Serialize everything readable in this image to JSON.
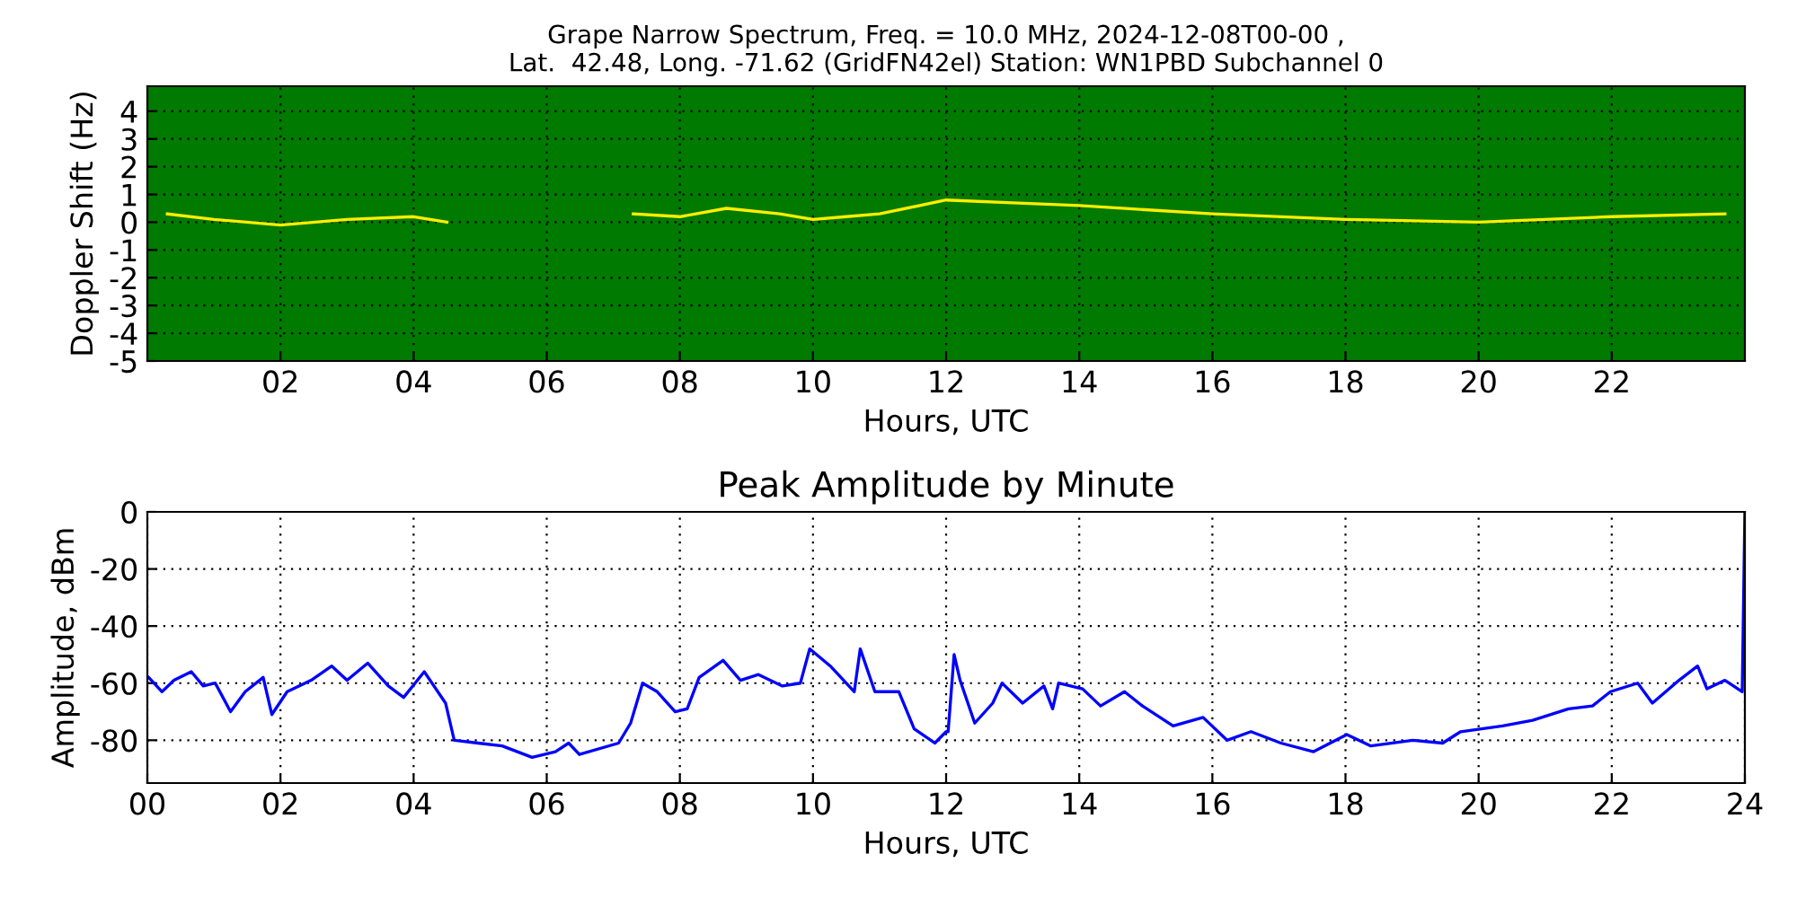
{
  "chart_data": [
    {
      "type": "line",
      "title": "Grape Narrow Spectrum, Freq. = 10.0 MHz, 2024-12-08T00-00 ,\nLat.  42.48, Long. -71.62 (GridFN42el) Station: WN1PBD Subchannel 0",
      "xlabel": "Hours, UTC",
      "ylabel": "Doppler Shift (Hz)",
      "xlim": [
        0,
        24
      ],
      "xticks": [
        {
          "value": 2,
          "label": "02"
        },
        {
          "value": 4,
          "label": "04"
        },
        {
          "value": 6,
          "label": "06"
        },
        {
          "value": 8,
          "label": "08"
        },
        {
          "value": 10,
          "label": "10"
        },
        {
          "value": 12,
          "label": "12"
        },
        {
          "value": 14,
          "label": "14"
        },
        {
          "value": 16,
          "label": "16"
        },
        {
          "value": 18,
          "label": "18"
        },
        {
          "value": 20,
          "label": "20"
        },
        {
          "value": 22,
          "label": "22"
        }
      ],
      "ylim": [
        -5,
        4.9
      ],
      "yticks": [
        -5,
        -4,
        -3,
        -2,
        -1,
        0,
        1,
        2,
        3,
        4
      ],
      "grid": true,
      "bands": [
        {
          "axis": "y",
          "from": -5,
          "to": 4.9,
          "color": "#007a00"
        }
      ],
      "series": [
        {
          "color": "#ffee00",
          "x": [
            0.3,
            1,
            2,
            3,
            4,
            4.5,
            5,
            7.3,
            8,
            8.7,
            9.5,
            10,
            10.5,
            11,
            12,
            13,
            14,
            16,
            18,
            20,
            22,
            23.7
          ],
          "values": [
            0.3,
            0.1,
            -0.1,
            0.1,
            0.2,
            0.0,
            null,
            0.3,
            0.2,
            0.5,
            0.3,
            0.1,
            0.2,
            0.3,
            0.8,
            0.7,
            0.6,
            0.3,
            0.1,
            0.0,
            0.2,
            0.3
          ]
        }
      ]
    },
    {
      "type": "line",
      "title": "Peak Amplitude by Minute",
      "xlabel": "Hours, UTC",
      "ylabel": "Amplitude, dBm",
      "xlim": [
        0,
        24
      ],
      "xticks": [
        {
          "value": 0,
          "label": "00"
        },
        {
          "value": 2,
          "label": "02"
        },
        {
          "value": 4,
          "label": "04"
        },
        {
          "value": 6,
          "label": "06"
        },
        {
          "value": 8,
          "label": "08"
        },
        {
          "value": 10,
          "label": "10"
        },
        {
          "value": 12,
          "label": "12"
        },
        {
          "value": 14,
          "label": "14"
        },
        {
          "value": 16,
          "label": "16"
        },
        {
          "value": 18,
          "label": "18"
        },
        {
          "value": 20,
          "label": "20"
        },
        {
          "value": 22,
          "label": "22"
        },
        {
          "value": 24,
          "label": "24"
        }
      ],
      "ylim": [
        -95,
        0
      ],
      "yticks": [
        -80,
        -60,
        -40,
        -20,
        0
      ],
      "grid": true,
      "series": [
        {
          "color": "#0000ff",
          "x": [
            0.02,
            0.22,
            0.4,
            0.66,
            0.84,
            1.02,
            1.25,
            1.47,
            1.74,
            1.87,
            2.1,
            2.46,
            2.77,
            3.0,
            3.31,
            3.62,
            3.85,
            4.16,
            4.48,
            4.61,
            4.97,
            5.33,
            5.78,
            6.13,
            6.33,
            6.49,
            7.08,
            7.26,
            7.44,
            7.66,
            7.93,
            8.11,
            8.29,
            8.65,
            8.91,
            9.18,
            9.54,
            9.81,
            9.95,
            10.26,
            10.62,
            10.71,
            10.93,
            11.29,
            11.52,
            11.83,
            12.0,
            12.03,
            12.12,
            12.21,
            12.43,
            12.7,
            12.84,
            13.15,
            13.47,
            13.6,
            13.69,
            14.05,
            14.32,
            14.68,
            14.95,
            15.41,
            15.86,
            16.22,
            16.58,
            17.03,
            17.52,
            18.02,
            18.38,
            19.01,
            19.46,
            19.73,
            20.36,
            20.81,
            21.35,
            21.71,
            21.98,
            22.39,
            22.61,
            23.01,
            23.29,
            23.43,
            23.7,
            23.96,
            24.0
          ],
          "values": [
            -58,
            -63,
            -59,
            -56,
            -61,
            -60,
            -70,
            -63,
            -58,
            -71,
            -63,
            -59,
            -54,
            -59,
            -53,
            -61,
            -65,
            -56,
            -67,
            -80,
            -81,
            -82,
            -86,
            -84,
            -81,
            -85,
            -81,
            -74,
            -60,
            -63,
            -70,
            -69,
            -58,
            -52,
            -59,
            -57,
            -61,
            -60,
            -48,
            -54,
            -63,
            -48,
            -63,
            -63,
            -76,
            -81,
            -77,
            -77,
            -50,
            -59,
            -74,
            -67,
            -60,
            -67,
            -61,
            -69,
            -60,
            -62,
            -68,
            -63,
            -68,
            -75,
            -72,
            -80,
            -77,
            -81,
            -84,
            -78,
            -82,
            -80,
            -81,
            -77,
            -75,
            -73,
            -69,
            -68,
            -63,
            -60,
            -67,
            -59,
            -54,
            -62,
            -59,
            -63,
            0
          ]
        }
      ]
    }
  ]
}
